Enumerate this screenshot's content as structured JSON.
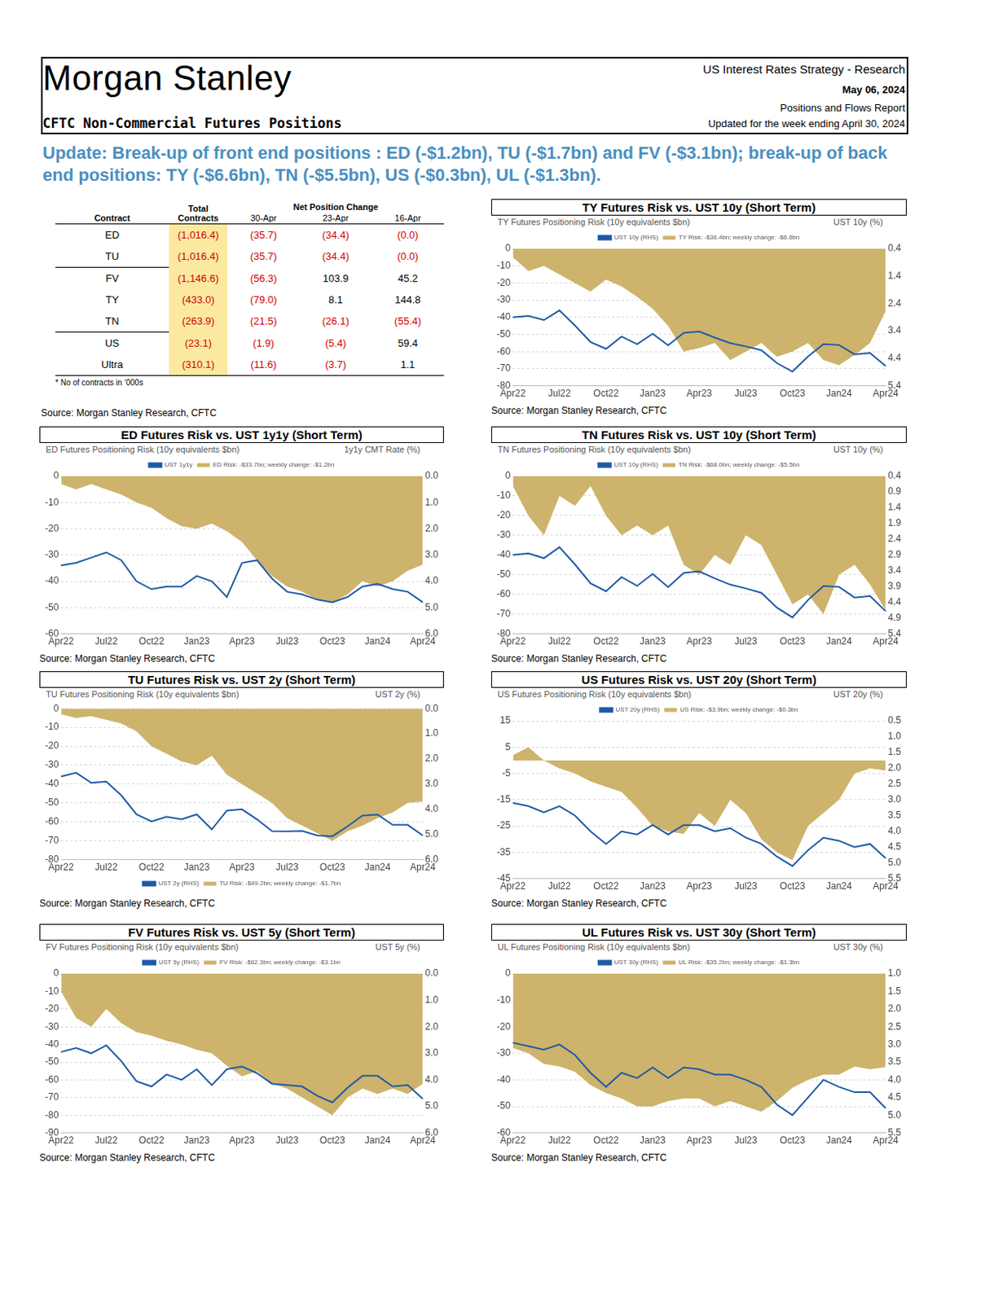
{
  "header": {
    "logo": "Morgan Stanley",
    "subtitle": "CFTC Non-Commercial Futures Positions",
    "lines": [
      "US Interest Rates Strategy - Research",
      "May 06, 2024",
      "Positions and Flows Report",
      "Updated for the week ending April 30, 2024"
    ]
  },
  "headline": "Update: Break-up of front end positions : ED (-$1.2bn), TU (-$1.7bn) and FV (-$3.1bn); break-up of back end positions: TY (-$6.6bn), TN (-$5.5bn), US (-$0.3bn), UL (-$1.3bn).",
  "table": {
    "group_header": "Net Position Change",
    "columns": [
      "Contract",
      "Total Contracts",
      "30-Apr",
      "23-Apr",
      "16-Apr"
    ],
    "rows": [
      [
        "ED",
        "(1,016.4)",
        "(35.7)",
        "(34.4)",
        "(0.0)"
      ],
      [
        "TU",
        "(1,016.4)",
        "(35.7)",
        "(34.4)",
        "(0.0)"
      ],
      [
        "FV",
        "(1,146.6)",
        "(56.3)",
        "103.9",
        "45.2"
      ],
      [
        "TY",
        "(433.0)",
        "(79.0)",
        "8.1",
        "144.8"
      ],
      [
        "TN",
        "(263.9)",
        "(21.5)",
        "(26.1)",
        "(55.4)"
      ],
      [
        "US",
        "(23.1)",
        "(1.9)",
        "(5.4)",
        "59.4"
      ],
      [
        "Ultra",
        "(310.1)",
        "(11.6)",
        "(3.7)",
        "1.1"
      ]
    ],
    "note": "* No of contracts in ‘000s",
    "source": "Source: Morgan Stanley Research, CFTC"
  },
  "chart_data": [
    {
      "type": "line",
      "title": "TY Futures Risk vs. UST 10y (Short Term)",
      "y_label": "TY Futures Positioning Risk (10y equivalents $bn)",
      "y2_label": "UST 10y (%)",
      "source": "Source: Morgan Stanley Research, CFTC",
      "categories": [
        "Apr22",
        null,
        null,
        "Jul22",
        null,
        null,
        "Oct22",
        null,
        null,
        "Jan23",
        null,
        null,
        "Apr23",
        null,
        null,
        "Jul23",
        null,
        null,
        "Oct23",
        null,
        null,
        "Jan24",
        null,
        null,
        "Apr24"
      ],
      "ylim": [
        -80,
        0
      ],
      "yticks": [
        -80,
        -70,
        -60,
        -50,
        -40,
        -30,
        -20,
        -10,
        0
      ],
      "y2lim": [
        5.4,
        0.4
      ],
      "y2ticks": [
        0.4,
        1.4,
        2.4,
        3.4,
        4.4,
        5.4
      ],
      "grid": "y",
      "legend": "top",
      "series": [
        {
          "name": "TY Risk: -$36.4bn; weekly change: -$6.6bn",
          "type": "area",
          "color": "#cdb36c",
          "values": [
            -5,
            -13,
            -10,
            -15,
            -20,
            -25,
            -18,
            -22,
            -28,
            -35,
            -45,
            -60,
            -58,
            -55,
            -65,
            -60,
            -55,
            -63,
            -60,
            -55,
            -65,
            -68,
            -62,
            -55,
            -36.4
          ]
        },
        {
          "name": "UST 10y (RHS)",
          "type": "line",
          "axis": "y2",
          "color": "#1f5aa6",
          "values": [
            2.9,
            2.85,
            3.0,
            2.65,
            3.2,
            3.8,
            4.05,
            3.6,
            3.88,
            3.5,
            3.92,
            3.47,
            3.42,
            3.64,
            3.84,
            3.96,
            4.1,
            4.57,
            4.88,
            4.33,
            3.88,
            3.91,
            4.25,
            4.2,
            4.68
          ]
        }
      ]
    },
    {
      "type": "line",
      "title": "ED Futures Risk vs. UST 1y1y (Short Term)",
      "y_label": "ED Futures Positioning Risk (10y equivalents $bn)",
      "y2_label": "1y1y CMT Rate (%)",
      "source": "Source: Morgan Stanley Research, CFTC",
      "categories": [
        "Apr22",
        null,
        null,
        "Jul22",
        null,
        null,
        "Oct22",
        null,
        null,
        "Jan23",
        null,
        null,
        "Apr23",
        null,
        null,
        "Jul23",
        null,
        null,
        "Oct23",
        null,
        null,
        "Jan24",
        null,
        null,
        "Apr24"
      ],
      "ylim": [
        -60,
        0
      ],
      "yticks": [
        -60,
        -50,
        -40,
        -30,
        -20,
        -10,
        0
      ],
      "y2lim": [
        6,
        0
      ],
      "y2ticks": [
        {
          "value": 0,
          "label": "0.0"
        },
        {
          "value": 1,
          "label": "1.0"
        },
        {
          "value": 2,
          "label": "2.0"
        },
        {
          "value": 3,
          "label": "3.0"
        },
        {
          "value": 4,
          "label": "4.0"
        },
        {
          "value": 5,
          "label": "5.0"
        },
        {
          "value": 6,
          "label": "6.0"
        }
      ],
      "grid": "y",
      "legend": "top",
      "series": [
        {
          "name": "ED Risk: -$33.7bn; weekly change: -$1.2bn",
          "type": "area",
          "color": "#cdb36c",
          "values": [
            -3,
            -5,
            -3,
            -5,
            -7,
            -10,
            -12,
            -16,
            -19,
            -20,
            -18,
            -21,
            -25,
            -32,
            -38,
            -42,
            -44,
            -47,
            -48,
            -45,
            -40,
            -42,
            -40,
            -36,
            -33.7
          ]
        },
        {
          "name": "UST 1y1y",
          "type": "line",
          "axis": "y2",
          "color": "#1f5aa6",
          "values": [
            3.4,
            3.3,
            3.1,
            2.9,
            3.2,
            4.0,
            4.3,
            4.2,
            4.2,
            3.8,
            4.0,
            4.6,
            3.3,
            3.2,
            3.9,
            4.4,
            4.5,
            4.7,
            4.8,
            4.6,
            4.2,
            4.1,
            4.3,
            4.4,
            4.8
          ]
        }
      ]
    },
    {
      "type": "line",
      "title": "TN Futures Risk vs. UST 10y (Short Term)",
      "y_label": "TN Futures Positioning Risk (10y equivalents $bn)",
      "y2_label": "UST 10y (%)",
      "source": "Source: Morgan Stanley Research, CFTC",
      "categories": [
        "Apr22",
        null,
        null,
        "Jul22",
        null,
        null,
        "Oct22",
        null,
        null,
        "Jan23",
        null,
        null,
        "Apr23",
        null,
        null,
        "Jul23",
        null,
        null,
        "Oct23",
        null,
        null,
        "Jan24",
        null,
        null,
        "Apr24"
      ],
      "ylim": [
        -80,
        0
      ],
      "yticks": [
        -80,
        -70,
        -60,
        -50,
        -40,
        -30,
        -20,
        -10,
        0
      ],
      "y2lim": [
        5.4,
        0.4
      ],
      "y2ticks": [
        0.4,
        0.9,
        1.4,
        1.9,
        2.4,
        2.9,
        3.4,
        3.9,
        4.4,
        4.9,
        5.4
      ],
      "grid": "y",
      "legend": "top",
      "series": [
        {
          "name": "TN Risk: -$68.0bn; weekly change: -$5.5bn",
          "type": "area",
          "color": "#cdb36c",
          "values": [
            -5,
            -20,
            -30,
            -10,
            -15,
            -5,
            -20,
            -30,
            -25,
            -30,
            -25,
            -45,
            -50,
            -40,
            -45,
            -30,
            -35,
            -50,
            -65,
            -60,
            -70,
            -50,
            -45,
            -55,
            -68
          ]
        },
        {
          "name": "UST 10y (RHS)",
          "type": "line",
          "axis": "y2",
          "color": "#1f5aa6",
          "values": [
            2.9,
            2.85,
            3.0,
            2.65,
            3.2,
            3.8,
            4.05,
            3.6,
            3.88,
            3.5,
            3.92,
            3.47,
            3.42,
            3.64,
            3.84,
            3.96,
            4.1,
            4.57,
            4.88,
            4.33,
            3.88,
            3.91,
            4.25,
            4.2,
            4.68
          ]
        }
      ]
    },
    {
      "type": "line",
      "title": "TU Futures Risk vs. UST 2y (Short Term)",
      "y_label": "TU Futures Positioning Risk (10y equivalents $bn)",
      "y2_label": "UST 2y (%)",
      "source": "Source: Morgan Stanley Research, CFTC",
      "categories": [
        "Apr22",
        null,
        null,
        "Jul22",
        null,
        null,
        "Oct22",
        null,
        null,
        "Jan23",
        null,
        null,
        "Apr23",
        null,
        null,
        "Jul23",
        null,
        null,
        "Oct23",
        null,
        null,
        "Jan24",
        null,
        null,
        "Apr24"
      ],
      "ylim": [
        -80,
        0
      ],
      "yticks": [
        -80,
        -70,
        -60,
        -50,
        -40,
        -30,
        -20,
        -10,
        0
      ],
      "y2lim": [
        6,
        0
      ],
      "y2ticks": [
        {
          "value": 0,
          "label": "0.0"
        },
        {
          "value": 1,
          "label": "1.0"
        },
        {
          "value": 2,
          "label": "2.0"
        },
        {
          "value": 3,
          "label": "3.0"
        },
        {
          "value": 4,
          "label": "4.0"
        },
        {
          "value": 5,
          "label": "5.0"
        },
        {
          "value": 6,
          "label": "6.0"
        }
      ],
      "grid": "y",
      "legend": "bottom",
      "series": [
        {
          "name": "TU Risk: -$49.2bn; weekly change: -$1.7bn",
          "type": "area",
          "color": "#cdb36c",
          "values": [
            -3,
            -5,
            -4,
            -6,
            -8,
            -12,
            -20,
            -24,
            -28,
            -30,
            -25,
            -35,
            -40,
            -45,
            -50,
            -58,
            -62,
            -66,
            -70,
            -65,
            -62,
            -58,
            -55,
            -50,
            -49.2
          ]
        },
        {
          "name": "UST 2y (RHS)",
          "type": "line",
          "axis": "y2",
          "color": "#1f5aa6",
          "values": [
            2.7,
            2.55,
            2.95,
            2.9,
            3.45,
            4.2,
            4.48,
            4.3,
            4.4,
            4.2,
            4.8,
            4.05,
            4.0,
            4.4,
            4.87,
            4.88,
            4.86,
            5.04,
            5.07,
            4.68,
            4.25,
            4.21,
            4.62,
            4.62,
            5.04
          ]
        }
      ]
    },
    {
      "type": "line",
      "title": "US Futures Risk vs. UST 20y (Short Term)",
      "y_label": "US Futures Positioning Risk (10y equivalents $bn)",
      "y2_label": "UST 20y (%)",
      "source": "Source: Morgan Stanley Research, CFTC",
      "categories": [
        "Apr22",
        null,
        null,
        "Jul22",
        null,
        null,
        "Oct22",
        null,
        null,
        "Jan23",
        null,
        null,
        "Apr23",
        null,
        null,
        "Jul23",
        null,
        null,
        "Oct23",
        null,
        null,
        "Jan24",
        null,
        null,
        "Apr24"
      ],
      "ylim": [
        -45,
        15
      ],
      "yticks": [
        -45,
        -35,
        -25,
        -15,
        -5,
        5,
        15
      ],
      "y2lim": [
        5.5,
        0.5
      ],
      "y2ticks": [
        0.5,
        {
          "value": 1,
          "label": "1.0"
        },
        1.5,
        {
          "value": 2,
          "label": "2.0"
        },
        2.5,
        {
          "value": 3,
          "label": "3.0"
        },
        3.5,
        {
          "value": 4,
          "label": "4.0"
        },
        4.5,
        {
          "value": 5,
          "label": "5.0"
        },
        5.5
      ],
      "grid": "y",
      "legend": "top",
      "series": [
        {
          "name": "US Risk: -$3.9bn; weekly change: -$0.3bn",
          "type": "area",
          "color": "#cdb36c",
          "values": [
            2,
            5,
            0,
            -3,
            -5,
            -8,
            -10,
            -12,
            -18,
            -25,
            -27,
            -28,
            -20,
            -25,
            -15,
            -20,
            -30,
            -35,
            -38,
            -25,
            -20,
            -15,
            -5,
            -3,
            -3.9
          ]
        },
        {
          "name": "UST 20y (RHS)",
          "type": "line",
          "axis": "y2",
          "color": "#1f5aa6",
          "values": [
            3.1,
            3.2,
            3.4,
            3.2,
            3.5,
            4.0,
            4.4,
            4.0,
            4.1,
            3.8,
            4.1,
            3.8,
            3.8,
            4.0,
            3.9,
            4.2,
            4.4,
            4.8,
            5.1,
            4.6,
            4.2,
            4.3,
            4.5,
            4.4,
            4.85
          ]
        }
      ]
    },
    {
      "type": "line",
      "title": "FV Futures Risk vs. UST 5y (Short Term)",
      "y_label": "FV Futures Positioning Risk (10y equivalents $bn)",
      "y2_label": "UST 5y (%)",
      "source": "Source: Morgan Stanley Research, CFTC",
      "categories": [
        "Apr22",
        null,
        null,
        "Jul22",
        null,
        null,
        "Oct22",
        null,
        null,
        "Jan23",
        null,
        null,
        "Apr23",
        null,
        null,
        "Jul23",
        null,
        null,
        "Oct23",
        null,
        null,
        "Jan24",
        null,
        null,
        "Apr24"
      ],
      "ylim": [
        -90,
        0
      ],
      "yticks": [
        -90,
        -80,
        -70,
        -60,
        -50,
        -40,
        -30,
        -20,
        -10,
        0
      ],
      "y2lim": [
        6,
        0
      ],
      "y2ticks": [
        {
          "value": 0,
          "label": "0.0"
        },
        {
          "value": 1,
          "label": "1.0"
        },
        {
          "value": 2,
          "label": "2.0"
        },
        {
          "value": 3,
          "label": "3.0"
        },
        {
          "value": 4,
          "label": "4.0"
        },
        {
          "value": 5,
          "label": "5.0"
        },
        {
          "value": 6,
          "label": "6.0"
        }
      ],
      "grid": "y",
      "legend": "top",
      "series": [
        {
          "name": "FV Risk: -$62.3bn; weekly change: -$3.1bn",
          "type": "area",
          "color": "#cdb36c",
          "values": [
            -10,
            -25,
            -30,
            -20,
            -28,
            -33,
            -35,
            -38,
            -40,
            -43,
            -45,
            -52,
            -58,
            -55,
            -62,
            -65,
            -70,
            -75,
            -80,
            -70,
            -65,
            -68,
            -65,
            -68,
            -62.3
          ]
        },
        {
          "name": "UST 5y (RHS)",
          "type": "line",
          "axis": "y2",
          "color": "#1f5aa6",
          "values": [
            2.95,
            2.8,
            3.0,
            2.7,
            3.3,
            4.05,
            4.25,
            3.8,
            4.0,
            3.6,
            4.2,
            3.6,
            3.5,
            3.75,
            4.15,
            4.2,
            4.25,
            4.6,
            4.85,
            4.3,
            3.85,
            3.85,
            4.25,
            4.2,
            4.72
          ]
        }
      ]
    },
    {
      "type": "line",
      "title": "UL Futures Risk vs. UST 30y (Short Term)",
      "y_label": "UL Futures Positioning Risk (10y equivalents $bn)",
      "y2_label": "UST 30y (%)",
      "source": "Source: Morgan Stanley Research, CFTC",
      "categories": [
        "Apr22",
        null,
        null,
        "Jul22",
        null,
        null,
        "Oct22",
        null,
        null,
        "Jan23",
        null,
        null,
        "Apr23",
        null,
        null,
        "Jul23",
        null,
        null,
        "Oct23",
        null,
        null,
        "Jan24",
        null,
        null,
        "Apr24"
      ],
      "ylim": [
        -60,
        0
      ],
      "yticks": [
        -60,
        -50,
        -40,
        -30,
        -20,
        -10,
        0
      ],
      "y2lim": [
        5.5,
        1
      ],
      "y2ticks": [
        {
          "value": 1,
          "label": "1.0"
        },
        1.5,
        {
          "value": 2,
          "label": "2.0"
        },
        2.5,
        {
          "value": 3,
          "label": "3.0"
        },
        3.5,
        {
          "value": 4,
          "label": "4.0"
        },
        4.5,
        {
          "value": 5,
          "label": "5.0"
        },
        5.5
      ],
      "grid": "y",
      "legend": "top",
      "series": [
        {
          "name": "UL Risk: -$35.2bn; weekly change: -$1.3bn",
          "type": "area",
          "color": "#cdb36c",
          "values": [
            -28,
            -30,
            -34,
            -35,
            -37,
            -42,
            -45,
            -47,
            -50,
            -50,
            -48,
            -47,
            -47,
            -50,
            -48,
            -50,
            -52,
            -48,
            -43,
            -40,
            -38,
            -38,
            -35,
            -36,
            -35.2
          ]
        },
        {
          "name": "UST 30y (RHS)",
          "type": "line",
          "axis": "y2",
          "color": "#1f5aa6",
          "values": [
            2.95,
            3.05,
            3.15,
            3.0,
            3.3,
            3.8,
            4.2,
            3.8,
            3.95,
            3.65,
            3.95,
            3.65,
            3.7,
            3.85,
            3.85,
            4.0,
            4.2,
            4.7,
            5.0,
            4.5,
            4.0,
            4.2,
            4.35,
            4.35,
            4.8
          ]
        }
      ]
    }
  ]
}
